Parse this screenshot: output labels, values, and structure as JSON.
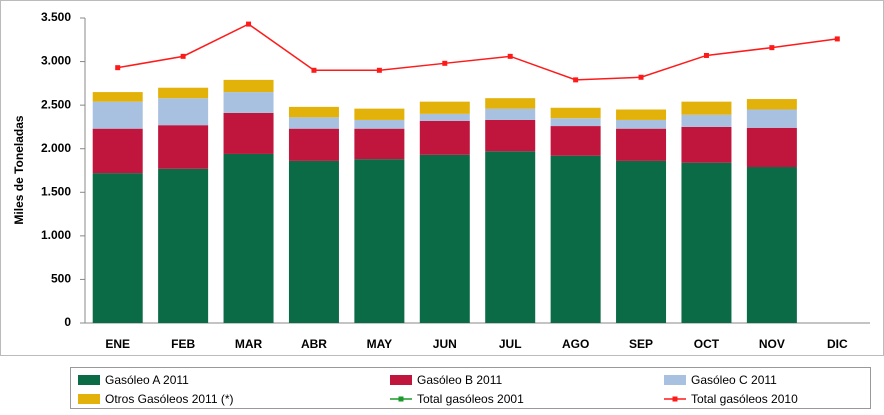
{
  "chart_data": {
    "type": "stacked_bar_line",
    "y_label": "Miles de Toneladas",
    "categories": [
      "ENE",
      "FEB",
      "MAR",
      "ABR",
      "MAY",
      "JUN",
      "JUL",
      "AGO",
      "SEP",
      "OCT",
      "NOV",
      "DIC"
    ],
    "series": [
      {
        "name": "Gasóleo A 2011",
        "color": "#0b6b46",
        "kind": "bar",
        "values": [
          1720,
          1770,
          1940,
          1860,
          1880,
          1930,
          1970,
          1920,
          1860,
          1840,
          1790,
          null
        ]
      },
      {
        "name": "Gasóleo B 2011",
        "color": "#c0163d",
        "kind": "bar",
        "values": [
          510,
          500,
          470,
          370,
          350,
          390,
          360,
          340,
          370,
          410,
          450,
          null
        ]
      },
      {
        "name": "Gasóleo C 2011",
        "color": "#a9c1e0",
        "kind": "bar",
        "values": [
          310,
          310,
          240,
          130,
          100,
          80,
          130,
          90,
          100,
          140,
          210,
          null
        ]
      },
      {
        "name": "Otros Gasóleos 2011 (*)",
        "color": "#e3b20a",
        "kind": "bar",
        "values": [
          110,
          120,
          140,
          120,
          130,
          140,
          120,
          120,
          120,
          150,
          120,
          null
        ]
      },
      {
        "name": "Total gasóleos 2001",
        "color": "#1a9a2a",
        "kind": "line",
        "values": [
          null,
          null,
          null,
          null,
          null,
          null,
          null,
          null,
          null,
          null,
          null,
          null
        ]
      },
      {
        "name": "Total gasóleos 2010",
        "color": "#ff1a1a",
        "kind": "line",
        "values": [
          2930,
          3060,
          3430,
          2900,
          2900,
          2980,
          3060,
          2790,
          2820,
          3070,
          3160,
          3260
        ]
      }
    ],
    "ylim": [
      0,
      3500
    ],
    "yticks": [
      0,
      500,
      {
        "value": 1000,
        "label": "1.000"
      },
      {
        "value": 1500,
        "label": "1.500"
      },
      {
        "value": 2000,
        "label": "2.000"
      },
      {
        "value": 2500,
        "label": "2.500"
      },
      {
        "value": 3000,
        "label": "3.000"
      },
      {
        "value": 3500,
        "label": "3.500"
      }
    ],
    "legend": "bottom"
  }
}
